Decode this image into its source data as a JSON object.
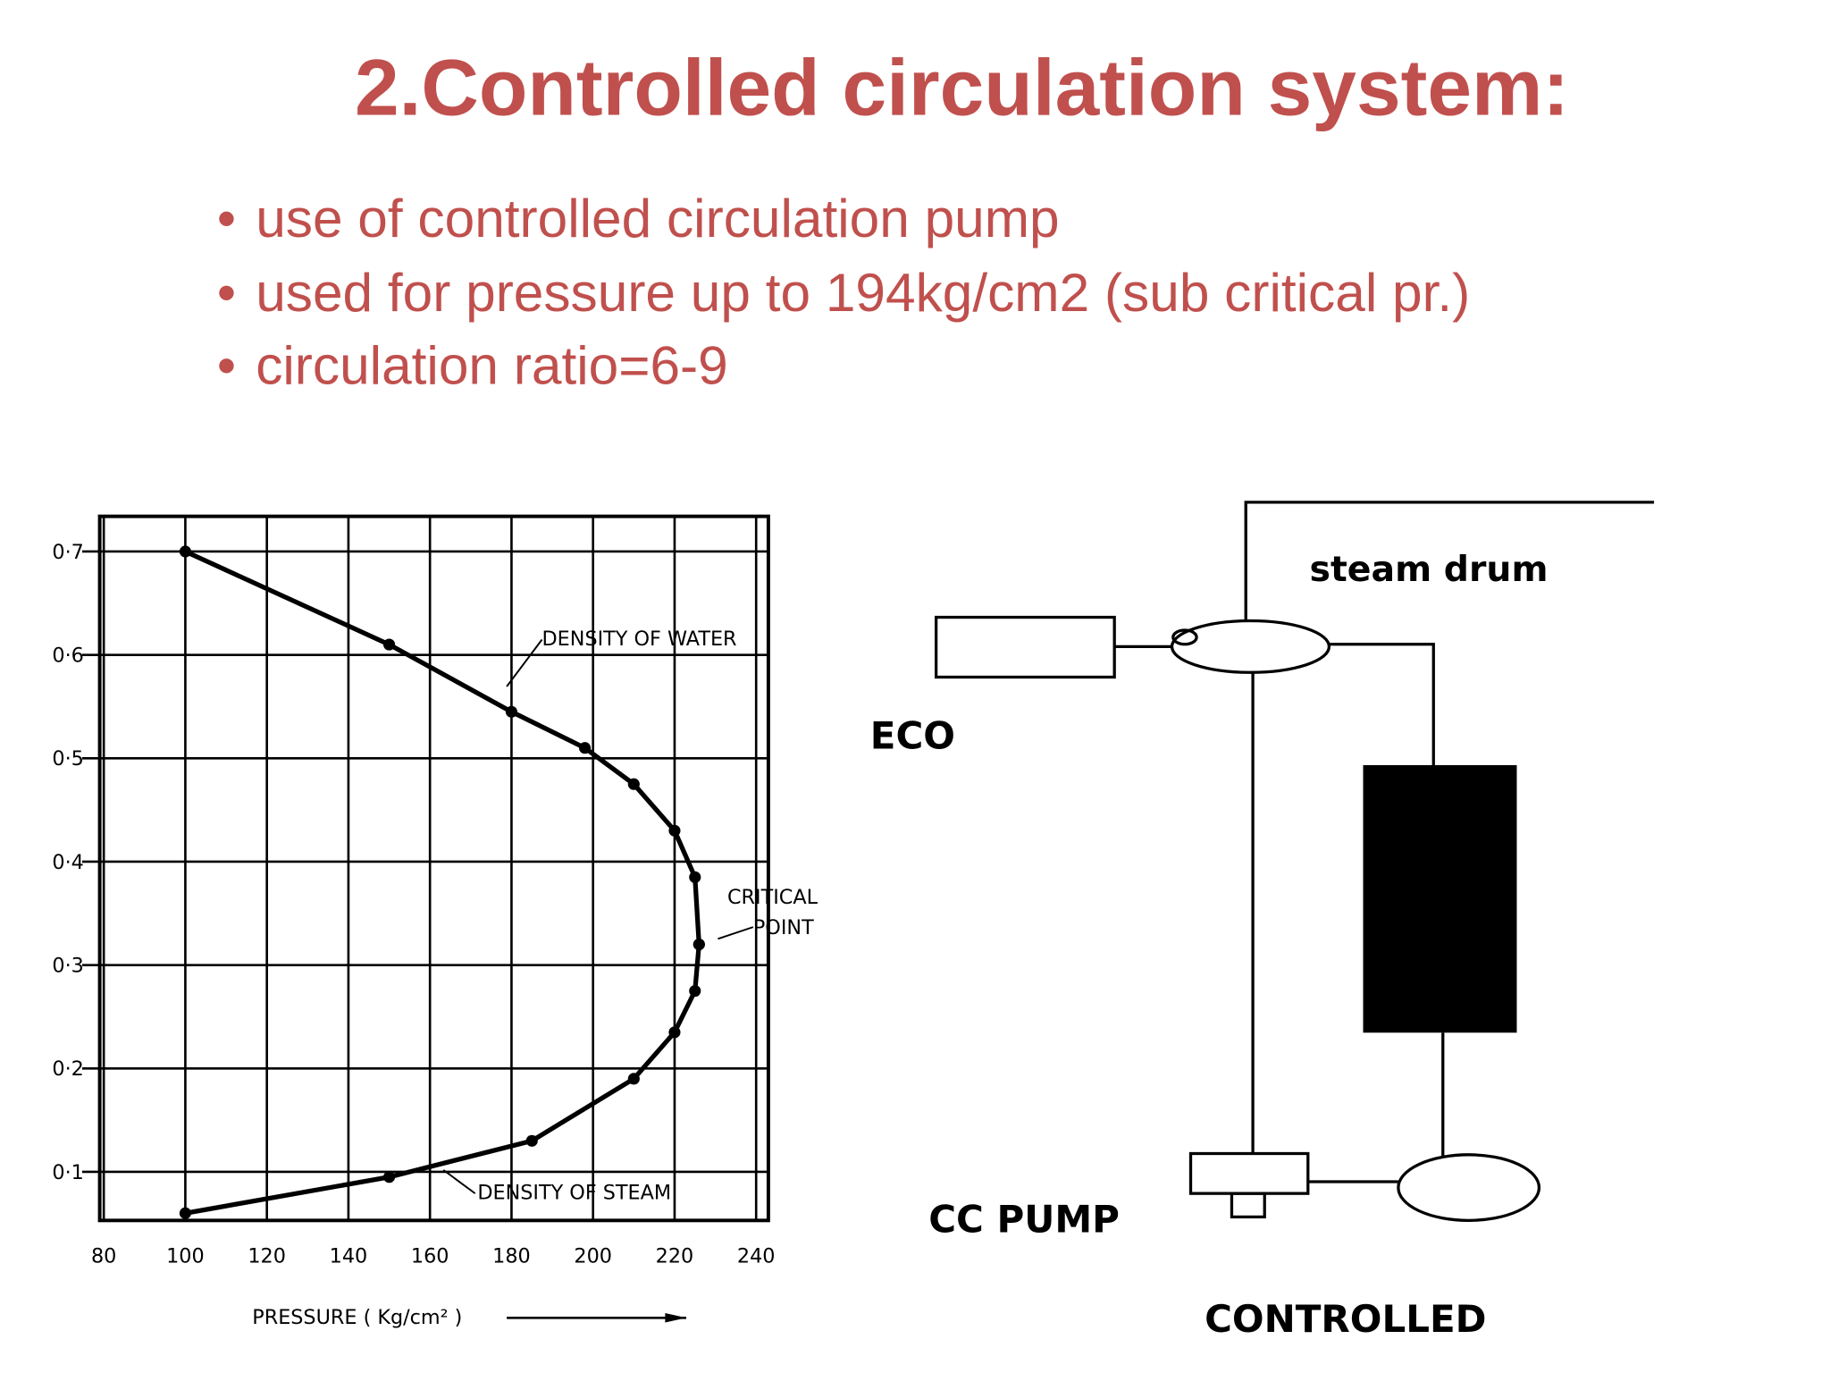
{
  "title": "2.Controlled  circulation system:",
  "bullets": [
    "use of controlled circulation pump",
    "used for pressure up to 194kg/cm2 (sub critical pr.)",
    "circulation ratio=6-9"
  ],
  "chart_data": {
    "type": "line",
    "x_label": "PRESSURE ( Kg/cm² )",
    "annotations": [
      "CRITICAL",
      "POINT"
    ],
    "xlim": [
      79,
      243
    ],
    "xticks": [
      80,
      100,
      120,
      140,
      160,
      180,
      200,
      220,
      240
    ],
    "ylim": [
      0.053,
      0.734
    ],
    "yticks": [
      {
        "value": 0.1,
        "label": "0·1"
      },
      {
        "value": 0.2,
        "label": "0·2"
      },
      {
        "value": 0.3,
        "label": "0·3"
      },
      {
        "value": 0.4,
        "label": "0·4"
      },
      {
        "value": 0.5,
        "label": "0·5"
      },
      {
        "value": 0.6,
        "label": "0·6"
      },
      {
        "value": 0.7,
        "label": "0·7"
      }
    ],
    "grid": true,
    "series": [
      {
        "name": "DENSITY OF WATER",
        "color": "#000000",
        "x": [
          100,
          150,
          180,
          198,
          210,
          220,
          225,
          226
        ],
        "values": [
          0.7,
          0.61,
          0.545,
          0.51,
          0.475,
          0.43,
          0.385,
          0.32
        ]
      },
      {
        "name": "DENSITY OF STEAM",
        "color": "#000000",
        "x": [
          100,
          150,
          185,
          210,
          220,
          225,
          226
        ],
        "values": [
          0.06,
          0.095,
          0.13,
          0.19,
          0.235,
          0.275,
          0.32
        ]
      }
    ]
  },
  "diagram": {
    "labels": [
      "steam drum",
      "ECO",
      "CC PUMP",
      "CONTROLLED"
    ]
  }
}
